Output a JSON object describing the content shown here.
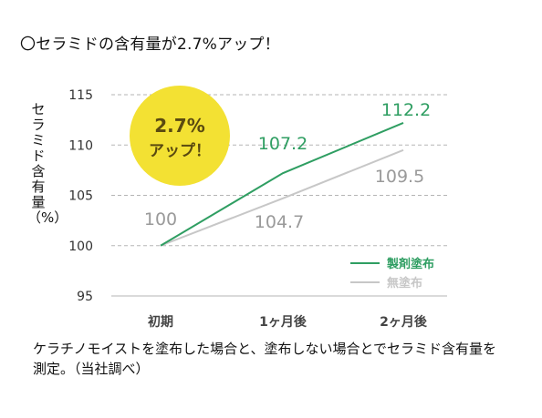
{
  "header": {
    "title": "〇セラミドの含有量が2.7%アップ！"
  },
  "badge": {
    "line1": "2.7%",
    "line2": "アップ！"
  },
  "caption": "ケラチノモイストを塗布した場合と、塗布しない場合とでセラミド含有量を測定。（当社調べ）",
  "colors": {
    "treated": "#2f9e62",
    "untreated": "#c7c7c7",
    "badge": "#f3e133",
    "grid": "#b5b5b5",
    "label_gray": "#9a9a9a"
  },
  "chart_data": {
    "type": "line",
    "title": "",
    "ylabel": "セラミド含有量（%）",
    "xlabel": "",
    "categories": [
      "初期",
      "1ヶ月後",
      "2ヶ月後"
    ],
    "ylim": [
      95,
      115
    ],
    "yticks": [
      "115",
      "110",
      "105",
      "100",
      "95"
    ],
    "grid": true,
    "legend_position": "bottom-right",
    "series": [
      {
        "name": "製剤塗布",
        "values": [
          100,
          107.2,
          112.2
        ],
        "labels": [
          "",
          "107.2",
          "112.2"
        ]
      },
      {
        "name": "無塗布",
        "values": [
          100,
          104.7,
          109.5
        ],
        "labels": [
          "100",
          "104.7",
          "109.5"
        ]
      }
    ]
  }
}
